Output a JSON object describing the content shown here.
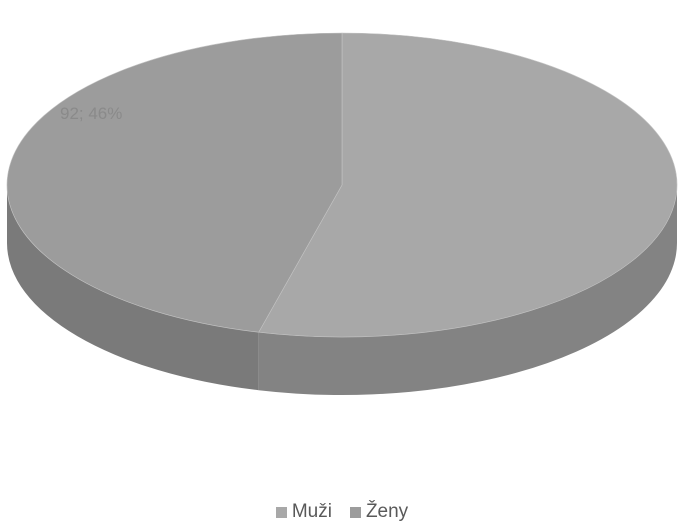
{
  "chart_data": {
    "type": "pie",
    "title": "",
    "categories": [
      "Muži",
      "Ženy"
    ],
    "values": [
      108,
      92
    ],
    "percentages": [
      54,
      46
    ],
    "data_labels": [
      "",
      "92; 46%"
    ],
    "colors": [
      "#a8a8a8",
      "#9c9c9c"
    ],
    "legend_position": "bottom",
    "style": "3d"
  },
  "legend": {
    "items": [
      {
        "label": "Muži",
        "color": "#a8a8a8"
      },
      {
        "label": "Ženy",
        "color": "#9c9c9c"
      }
    ]
  }
}
